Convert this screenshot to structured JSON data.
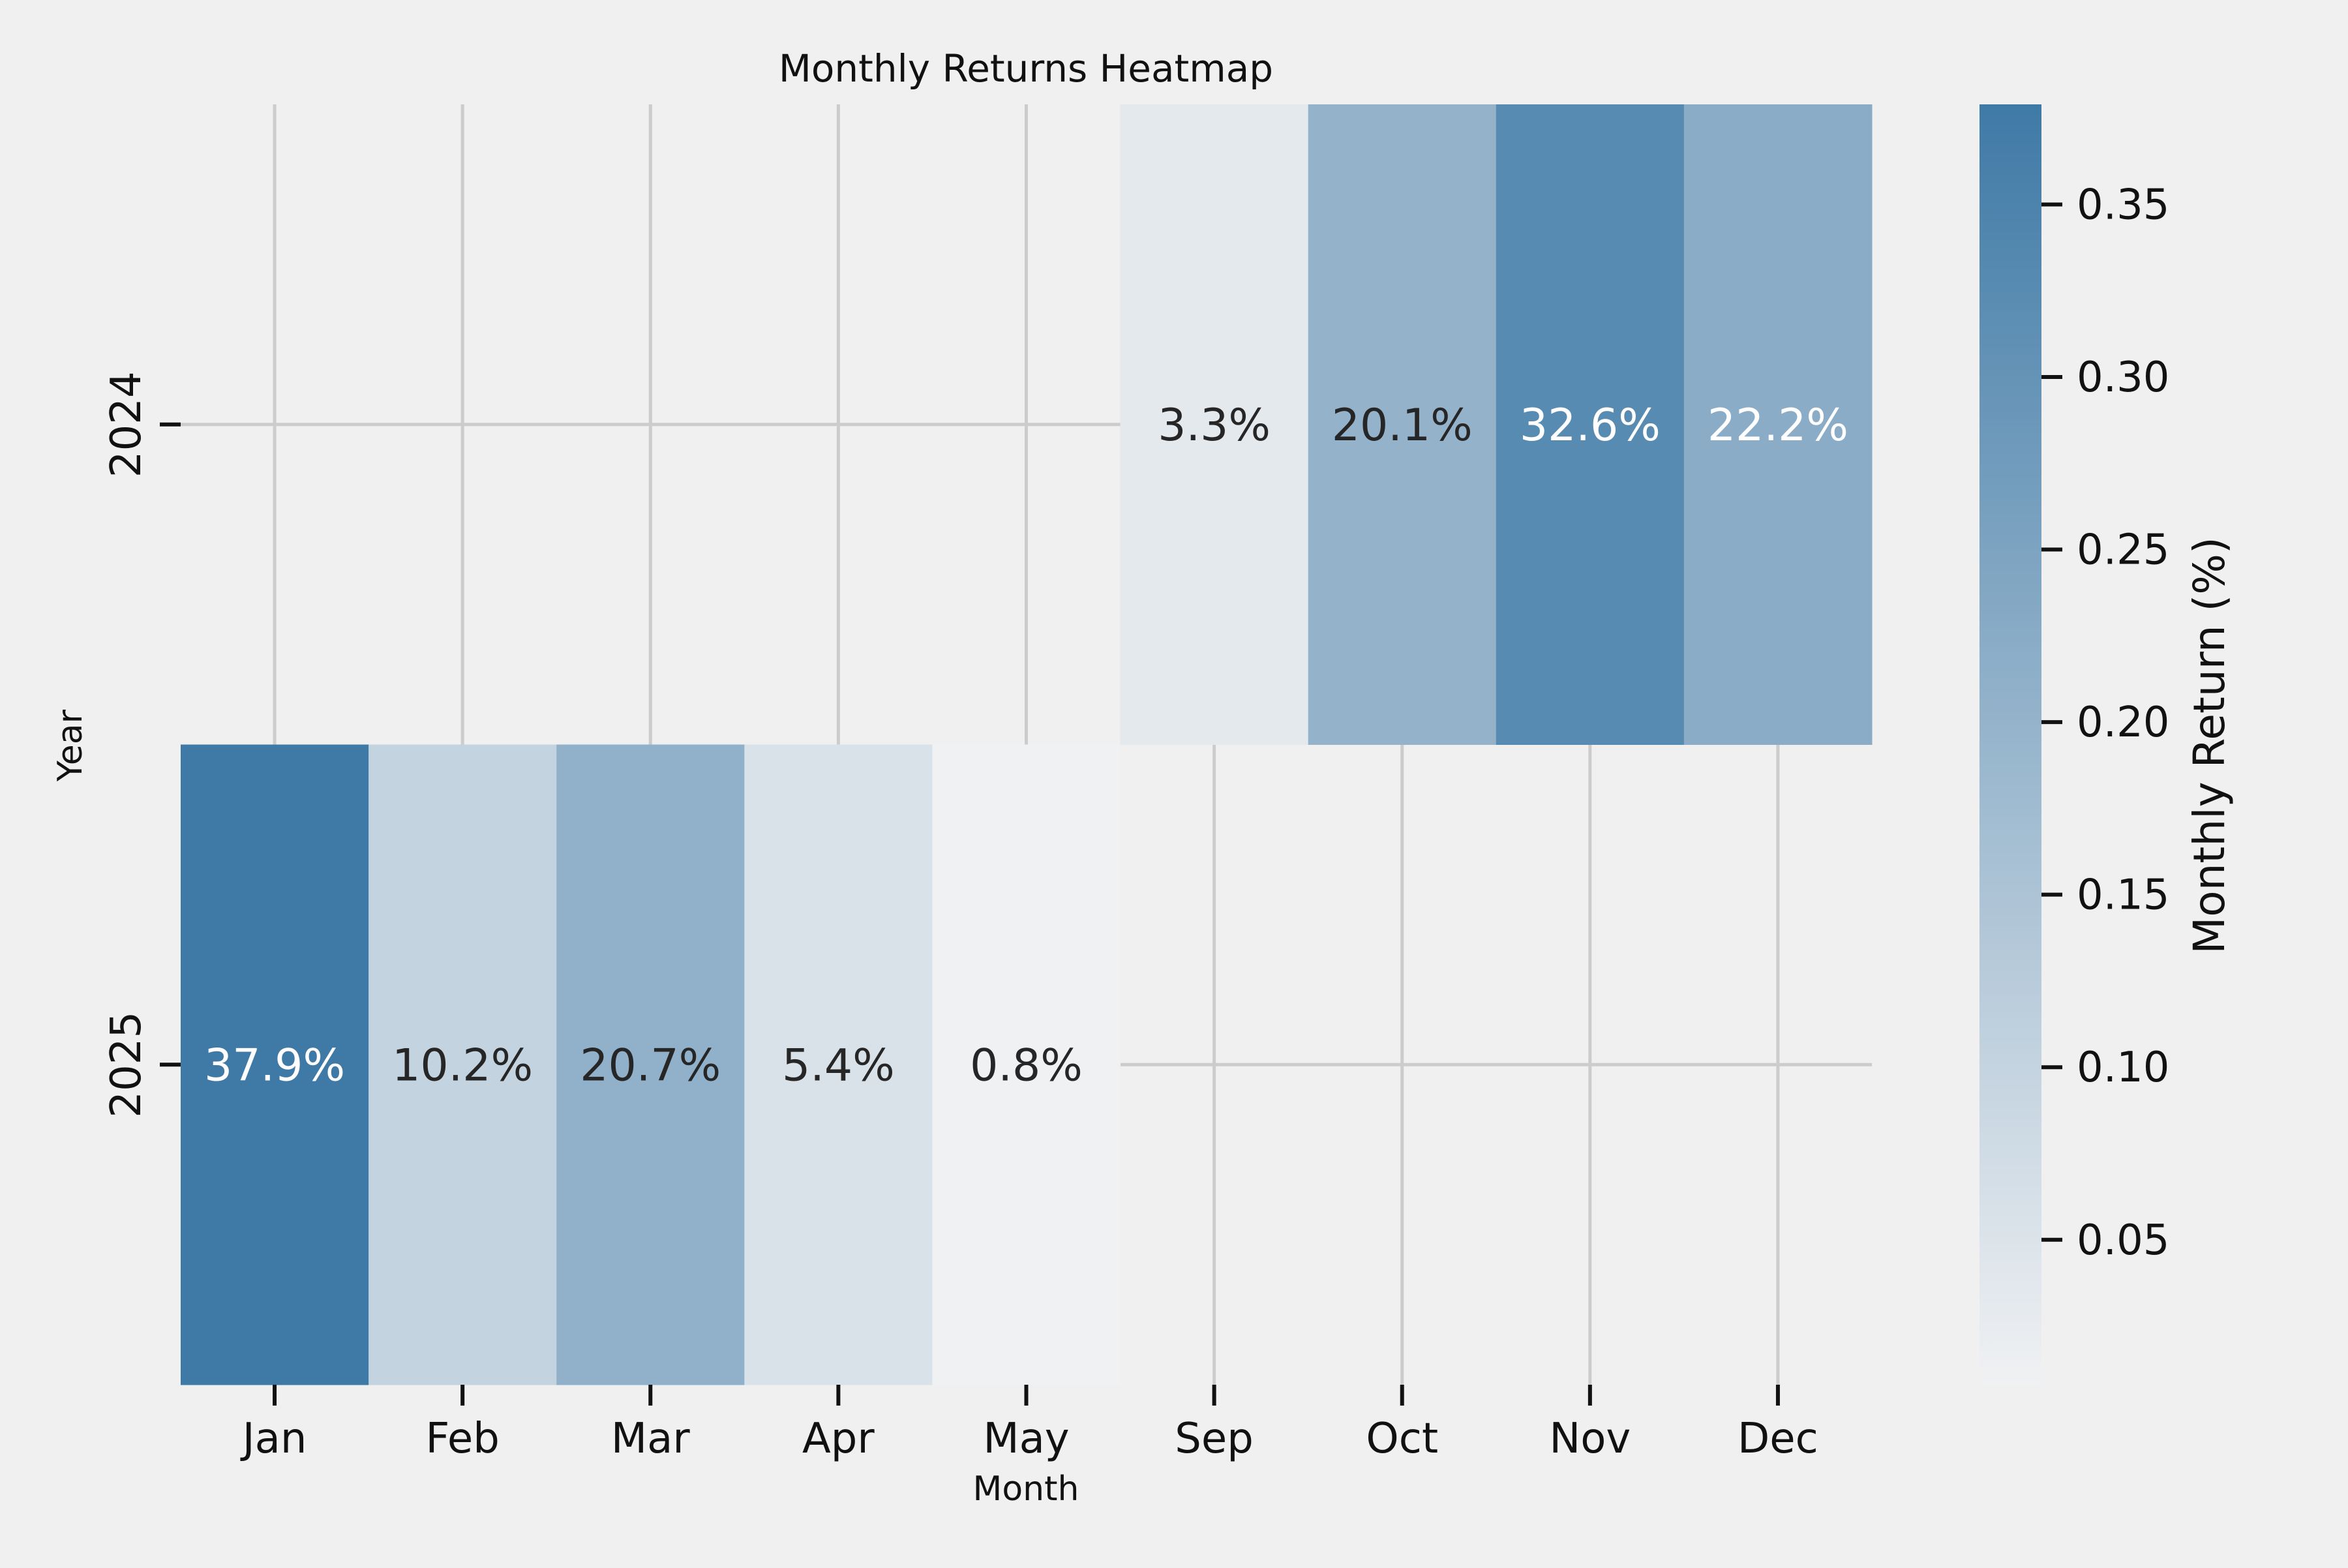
{
  "chart_data": {
    "type": "heatmap",
    "title": "Monthly Returns Heatmap",
    "xlabel": "Month",
    "ylabel": "Year",
    "x_categories": [
      "Jan",
      "Feb",
      "Mar",
      "Apr",
      "May",
      "Sep",
      "Oct",
      "Nov",
      "Dec"
    ],
    "y_categories": [
      "2024",
      "2025"
    ],
    "values": [
      [
        null,
        null,
        null,
        null,
        null,
        0.033,
        0.201,
        0.326,
        0.222
      ],
      [
        0.379,
        0.102,
        0.207,
        0.054,
        0.008,
        null,
        null,
        null,
        null
      ]
    ],
    "cell_labels": [
      [
        null,
        null,
        null,
        null,
        null,
        "3.3%",
        "20.1%",
        "32.6%",
        "22.2%"
      ],
      [
        "37.9%",
        "10.2%",
        "20.7%",
        "5.4%",
        "0.8%",
        null,
        null,
        null,
        null
      ]
    ],
    "colorbar": {
      "label": "Monthly Return (%)",
      "vmin": 0.008,
      "vmax": 0.379,
      "ticks": [
        0.05,
        0.1,
        0.15,
        0.2,
        0.25,
        0.3,
        0.35
      ],
      "tick_labels": [
        "0.05",
        "0.10",
        "0.15",
        "0.20",
        "0.25",
        "0.30",
        "0.35"
      ],
      "color_low": "#f0f1f3",
      "color_high": "#3f7aa6"
    },
    "grid": true,
    "colors": {
      "background": "#f0f0f0",
      "grid": "#cccccc",
      "text_dark": "#262626",
      "text_light": "#ffffff"
    }
  }
}
